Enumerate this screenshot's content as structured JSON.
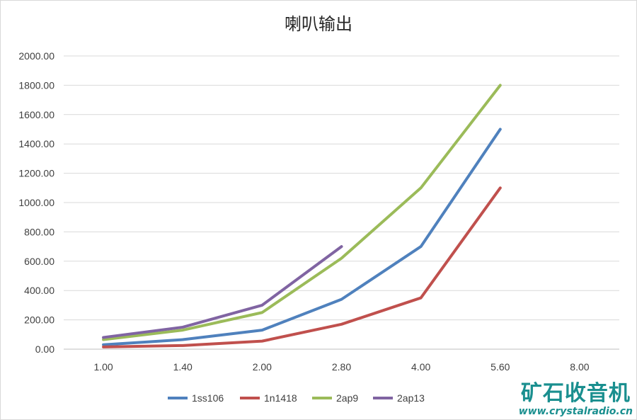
{
  "chart_data": {
    "type": "line",
    "title": "喇叭输出",
    "xlabel": "",
    "ylabel": "",
    "categories": [
      "1.00",
      "1.40",
      "2.00",
      "2.80",
      "4.00",
      "5.60",
      "8.00"
    ],
    "y_ticks": [
      "0.00",
      "200.00",
      "400.00",
      "600.00",
      "800.00",
      "1000.00",
      "1200.00",
      "1400.00",
      "1600.00",
      "1800.00",
      "2000.00"
    ],
    "ylim": [
      0,
      2000
    ],
    "grid": true,
    "legend_position": "bottom",
    "series": [
      {
        "name": "1ss106",
        "color": "#4f81bd",
        "values": [
          30,
          65,
          130,
          340,
          700,
          1500,
          null
        ]
      },
      {
        "name": "1n1418",
        "color": "#c0504d",
        "values": [
          15,
          25,
          55,
          170,
          350,
          1100,
          null
        ]
      },
      {
        "name": "2ap9",
        "color": "#9bbb59",
        "values": [
          65,
          130,
          250,
          620,
          1100,
          1800,
          null
        ]
      },
      {
        "name": "2ap13",
        "color": "#8064a2",
        "values": [
          80,
          150,
          300,
          700,
          null,
          null,
          null
        ]
      }
    ]
  },
  "watermark": {
    "brand": "矿石收音机",
    "url": "www.crystalradio.cn"
  }
}
